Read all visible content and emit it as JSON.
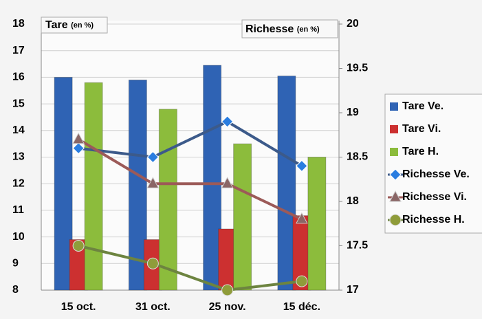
{
  "chart_data": {
    "type": "combo",
    "y_label": "Tare",
    "y_unit": "(en %)",
    "y2_label": "Richesse",
    "y2_unit": "(en %)",
    "categories": [
      "15 oct.",
      "31 oct.",
      "25 nov.",
      "15 déc."
    ],
    "ylim": [
      8,
      18
    ],
    "yticks": [
      8,
      9,
      10,
      11,
      12,
      13,
      14,
      15,
      16,
      17,
      18
    ],
    "y2lim": [
      17,
      20
    ],
    "y2ticks": [
      17,
      17.5,
      18,
      18.5,
      19,
      19.5,
      20
    ],
    "grid": true,
    "legend": "right",
    "series": [
      {
        "name": "Tare Ve.",
        "type": "bar",
        "color": "#2f63b4",
        "values": [
          16,
          15.9,
          16.45,
          16.05
        ]
      },
      {
        "name": "Tare Vi.",
        "type": "bar",
        "color": "#cc3030",
        "values": [
          9.9,
          9.9,
          10.3,
          10.8
        ]
      },
      {
        "name": "Tare H.",
        "type": "bar",
        "color": "#8cbc3c",
        "values": [
          15.8,
          14.8,
          13.5,
          13
        ]
      },
      {
        "name": "Richesse Ve.",
        "type": "line",
        "axis": "y2",
        "marker": "diamond",
        "color": "#3c5a8a",
        "marker_color": "#2a7de0",
        "values": [
          18.6,
          18.5,
          18.9,
          18.4
        ]
      },
      {
        "name": "Richesse Vi.",
        "type": "line",
        "axis": "y2",
        "marker": "triangle",
        "color": "#9c5a58",
        "marker_color": "#8a6666",
        "values": [
          18.7,
          18.2,
          18.2,
          17.8
        ]
      },
      {
        "name": "Richesse H.",
        "type": "line",
        "axis": "y2",
        "marker": "circle",
        "color": "#6d8440",
        "marker_color": "#8f9c3a",
        "values": [
          17.5,
          17.3,
          17.0,
          17.1
        ]
      }
    ]
  }
}
